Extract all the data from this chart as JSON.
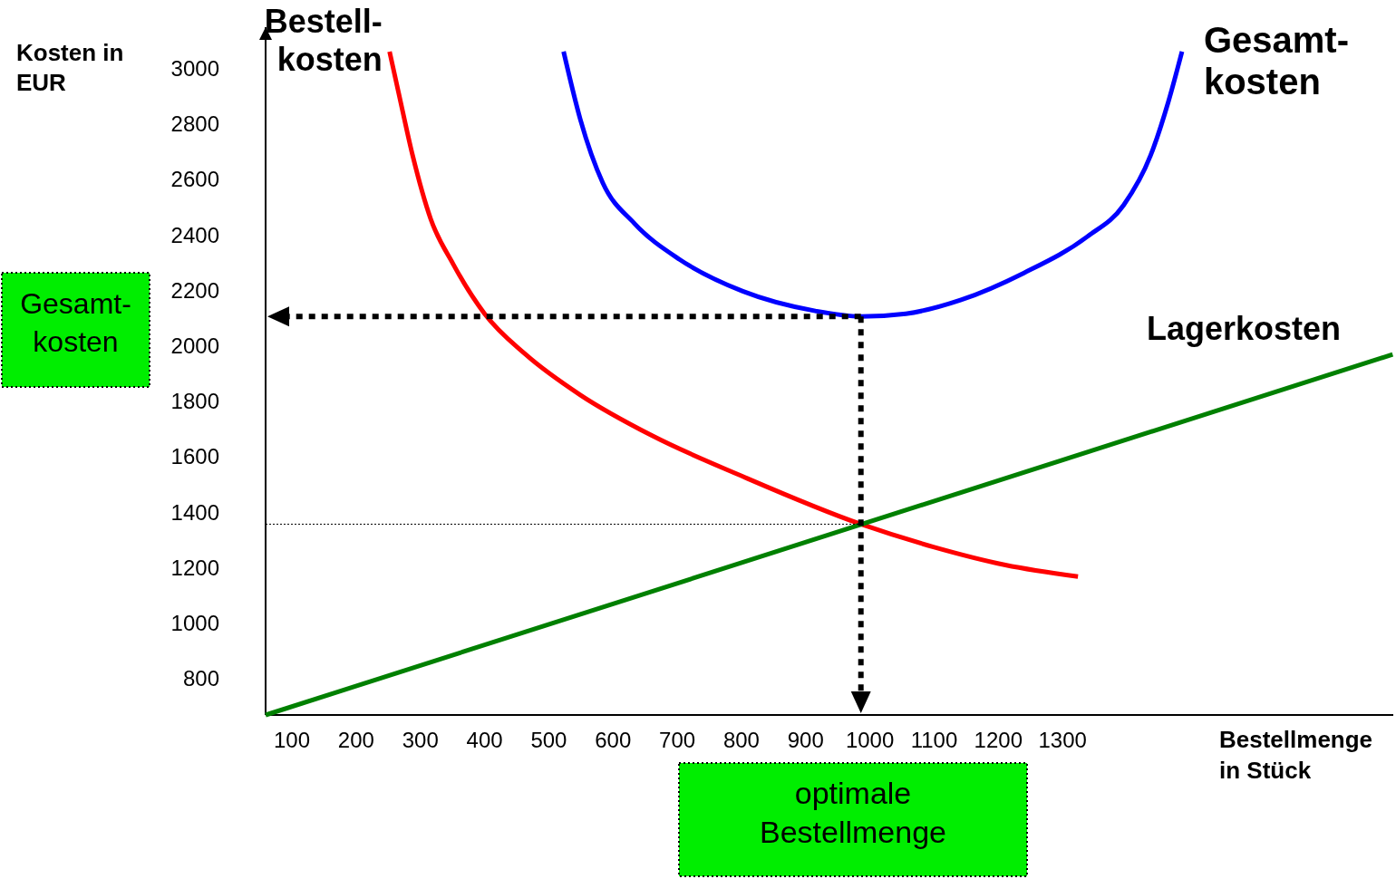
{
  "chart_data": {
    "type": "line",
    "xlabel": "Bestellmenge\nin Stück",
    "ylabel": "Kosten in\nEUR",
    "xlim": [
      59,
      1815
    ],
    "ylim": [
      670,
      3150
    ],
    "xticks": [
      100,
      200,
      300,
      400,
      500,
      600,
      700,
      800,
      900,
      1000,
      1100,
      1200,
      1300
    ],
    "yticks": [
      800,
      1000,
      1200,
      1400,
      1600,
      1800,
      2000,
      2200,
      2400,
      2600,
      2800,
      3000
    ],
    "grid": false,
    "marker": "none",
    "line_style": "solid",
    "series": [
      {
        "name": "Bestell-\nkosten",
        "color": "#ff0000",
        "x": [
          252,
          266,
          288,
          316,
          351,
          400,
          464,
          549,
          661,
          802,
          986,
          1099,
          1211,
          1324
        ],
        "values": [
          3062,
          2915,
          2687,
          2459,
          2296,
          2117,
          1970,
          1824,
          1677,
          1530,
          1358,
          1276,
          1211,
          1169
        ]
      },
      {
        "name": "Gesamt-\nkosten",
        "color": "#0000ff",
        "x": [
          523,
          549,
          584,
          633,
          704,
          802,
          915,
          986,
          1056,
          1141,
          1240,
          1338,
          1395,
          1437,
          1465,
          1486
        ],
        "values": [
          3062,
          2818,
          2589,
          2443,
          2312,
          2198,
          2127,
          2107,
          2117,
          2166,
          2264,
          2394,
          2508,
          2687,
          2883,
          3062
        ]
      },
      {
        "name": "Lagerkosten",
        "color": "#008000",
        "x": [
          59,
          1814
        ],
        "values": [
          670,
          1970
        ]
      },
      {
        "color": "#000000",
        "line_style": "dotted",
        "x": [
          59,
          986
        ],
        "values": [
          1358,
          1358
        ]
      }
    ],
    "annotations": [
      "Gesamt-\nkosten",
      "optimale\nBestellmenge"
    ]
  }
}
